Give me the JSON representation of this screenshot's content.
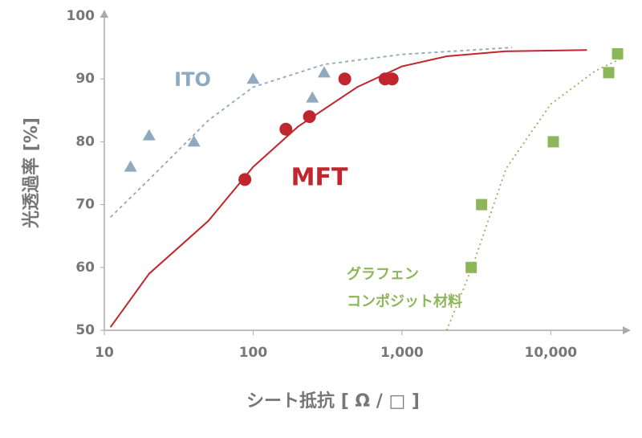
{
  "chart_data": {
    "type": "scatter",
    "x_label": "シート抵抗 [ Ω / □ ]",
    "y_label": "光透過率 [%]",
    "x_log": true,
    "xlim": [
      10,
      32000
    ],
    "ylim": [
      50,
      100
    ],
    "xticks": [
      10,
      100,
      {
        "value": 1000,
        "label": "1,000"
      },
      {
        "value": 10000,
        "label": "10,000"
      }
    ],
    "yticks": [
      50,
      60,
      70,
      80,
      90,
      100
    ],
    "series": [
      {
        "name": "ITO",
        "color": "#8fa9bf",
        "marker": "triangle",
        "line": "dashed",
        "x": [
          15,
          20,
          40,
          100,
          250,
          300
        ],
        "values": [
          76,
          81,
          80,
          90,
          87,
          91
        ],
        "trend": {
          "x": [
            11,
            20,
            50,
            100,
            300,
            1000,
            5500
          ],
          "y": [
            68,
            74,
            83.4,
            88.7,
            92.3,
            93.9,
            95
          ]
        }
      },
      {
        "name": "MFT",
        "color": "#c0262d",
        "marker": "circle",
        "line": "solid",
        "x": [
          88,
          166,
          239,
          413,
          770,
          860
        ],
        "values": [
          74,
          82,
          84,
          90,
          90,
          90
        ],
        "trend": {
          "x": [
            11,
            20,
            50,
            100,
            200,
            500,
            1000,
            2000,
            5000,
            17500
          ],
          "y": [
            50.5,
            59,
            67.4,
            76,
            82.4,
            88.7,
            92,
            93.6,
            94.4,
            94.6
          ]
        }
      },
      {
        "name": [
          "グラフェン",
          "コンポジット材料"
        ],
        "color": "#8db55a",
        "marker": "square",
        "line": "dotted",
        "x": [
          2920,
          3430,
          10400,
          24500,
          28100
        ],
        "values": [
          60,
          70,
          80,
          91,
          94
        ],
        "trend": {
          "x": [
            2000,
            3000,
            5000,
            10000,
            20000,
            30000
          ],
          "y": [
            50,
            60.4,
            75.7,
            86,
            91.3,
            93.3
          ]
        }
      }
    ]
  }
}
